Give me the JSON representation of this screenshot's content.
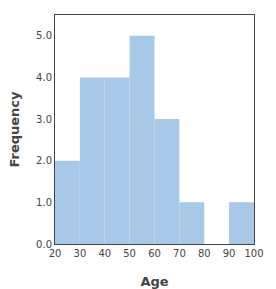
{
  "chart_data": {
    "type": "histogram",
    "bins": [
      20,
      30,
      40,
      50,
      60,
      70,
      80,
      90,
      100
    ],
    "values": [
      2,
      4,
      4,
      5,
      3,
      1,
      0,
      1
    ],
    "color": "#a8c8e8",
    "xlabel": "Age",
    "ylabel": "Frequency",
    "xlim": [
      20,
      100
    ],
    "ylim": [
      0,
      5.5
    ],
    "xticks": [
      20,
      30,
      40,
      50,
      60,
      70,
      80,
      90,
      100
    ],
    "yticks": [
      {
        "value": 0,
        "label": "0.0"
      },
      {
        "value": 1,
        "label": "1.0"
      },
      {
        "value": 2,
        "label": "2.0"
      },
      {
        "value": 3,
        "label": "3.0"
      },
      {
        "value": 4,
        "label": "4.0"
      },
      {
        "value": 5,
        "label": "5.0"
      }
    ],
    "grid": false
  }
}
